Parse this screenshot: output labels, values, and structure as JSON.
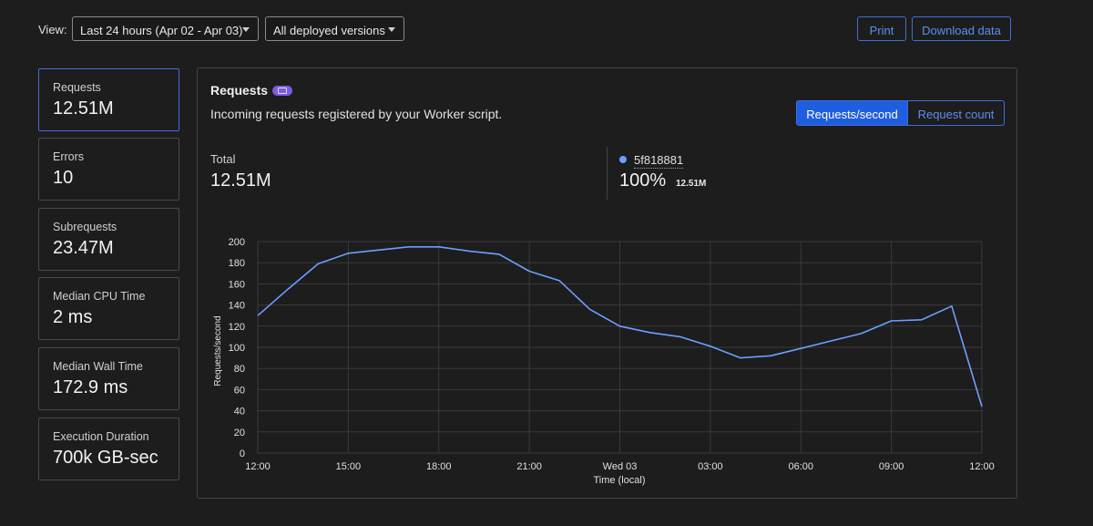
{
  "topbar": {
    "view_label": "View:",
    "range_select": "Last 24 hours (Apr 02 - Apr 03)",
    "version_select": "All deployed versions",
    "print_label": "Print",
    "download_label": "Download data"
  },
  "metrics": [
    {
      "label": "Requests",
      "value": "12.51M"
    },
    {
      "label": "Errors",
      "value": "10"
    },
    {
      "label": "Subrequests",
      "value": "23.47M"
    },
    {
      "label": "Median CPU Time",
      "value": "2 ms"
    },
    {
      "label": "Median Wall Time",
      "value": "172.9 ms"
    },
    {
      "label": "Execution Duration",
      "value": "700k GB-sec"
    }
  ],
  "panel": {
    "title": "Requests",
    "subtitle": "Incoming requests registered by your Worker script.",
    "toggle": {
      "active": "Requests/second",
      "inactive": "Request count"
    },
    "total_label": "Total",
    "total_value": "12.51M",
    "legend": {
      "name": "5f818881",
      "percent": "100%",
      "value": "12.51M"
    }
  },
  "colors": {
    "accent": "#3e6fd8",
    "series": "#6aa0ff",
    "badge": "#7b5ce0"
  },
  "chart_data": {
    "type": "line",
    "xlabel": "Time (local)",
    "ylabel": "Requests/second",
    "ylim": [
      0,
      200
    ],
    "y_ticks": [
      "200",
      "180",
      "160",
      "140",
      "120",
      "100",
      "80",
      "60",
      "40",
      "20",
      "0"
    ],
    "x_ticks": [
      "12:00",
      "15:00",
      "18:00",
      "21:00",
      "Wed 03",
      "03:00",
      "06:00",
      "09:00",
      "12:00"
    ],
    "x_hours_range": [
      0,
      24
    ],
    "grid": true,
    "series": [
      {
        "name": "5f818881",
        "x_hours": [
          0,
          1,
          2,
          3,
          4,
          5,
          6,
          7,
          8,
          9,
          10,
          11,
          12,
          13,
          14,
          15,
          16,
          17,
          18,
          19,
          20,
          21,
          22,
          23,
          24
        ],
        "values": [
          130,
          155,
          179,
          189,
          192,
          195,
          195,
          191,
          188,
          172,
          163,
          136,
          120,
          114,
          110,
          101,
          90,
          92,
          99,
          106,
          113,
          125,
          126,
          139,
          44
        ]
      }
    ]
  }
}
